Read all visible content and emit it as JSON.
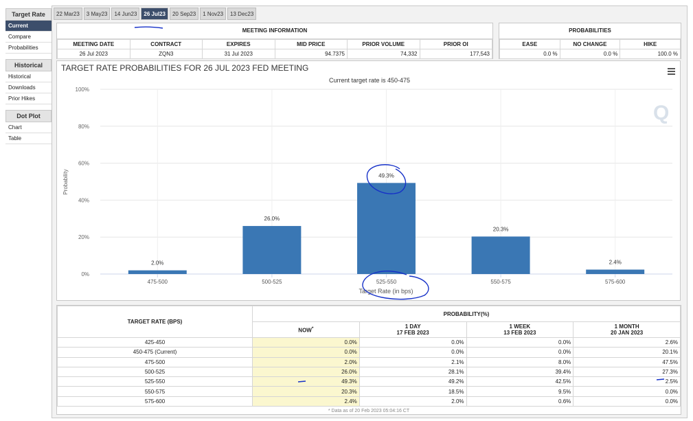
{
  "sidebar": [
    {
      "heading": "Target Rate",
      "items": [
        "Current",
        "Compare",
        "Probabilities"
      ]
    },
    {
      "heading": "Historical",
      "items": [
        "Historical",
        "Downloads",
        "Prior Hikes"
      ]
    },
    {
      "heading": "Dot Plot",
      "items": [
        "Chart",
        "Table"
      ]
    }
  ],
  "tabs": [
    "22 Mar23",
    "3 May23",
    "14 Jun23",
    "26 Jul23",
    "20 Sep23",
    "1 Nov23",
    "13 Dec23"
  ],
  "meeting_info": {
    "title": "MEETING INFORMATION",
    "columns": [
      "MEETING DATE",
      "CONTRACT",
      "EXPIRES",
      "MID PRICE",
      "PRIOR VOLUME",
      "PRIOR OI"
    ],
    "values": [
      "26 Jul 2023",
      "ZQN3",
      "31 Jul 2023",
      "94.7375",
      "74,332",
      "177,543"
    ]
  },
  "probabilities": {
    "title": "PROBABILITIES",
    "columns": [
      "EASE",
      "NO CHANGE",
      "HIKE"
    ],
    "values": [
      "0.0 %",
      "0.0 %",
      "100.0 %"
    ]
  },
  "chart_data": {
    "type": "bar",
    "title": "TARGET RATE PROBABILITIES FOR 26 JUL 2023 FED MEETING",
    "subtitle": "Current target rate is 450-475",
    "x_label": "Target Rate (in bps)",
    "y_label": "Probability",
    "categories": [
      "475-500",
      "500-525",
      "525-550",
      "550-575",
      "575-600"
    ],
    "values": [
      2.0,
      26.0,
      49.3,
      20.3,
      2.4
    ],
    "value_labels": [
      "2.0%",
      "26.0%",
      "49.3%",
      "20.3%",
      "2.4%"
    ],
    "color": "#3a77b4",
    "ylim": [
      0,
      100
    ],
    "yticks": [
      {
        "value": 0,
        "label": "0%"
      },
      {
        "value": 20,
        "label": "20%"
      },
      {
        "value": 40,
        "label": "40%"
      },
      {
        "value": 60,
        "label": "60%"
      },
      {
        "value": 80,
        "label": "80%"
      },
      {
        "value": 100,
        "label": "100%"
      }
    ],
    "grid": true
  },
  "table": {
    "rate_header": "TARGET RATE (BPS)",
    "group_header": "PROBABILITY(%)",
    "columns": [
      {
        "name": "NOW",
        "note": "*"
      },
      {
        "name": "1 DAY",
        "date": "17 FEB 2023"
      },
      {
        "name": "1 WEEK",
        "date": "13 FEB 2023"
      },
      {
        "name": "1 MONTH",
        "date": "20 JAN 2023"
      }
    ],
    "rows": [
      [
        "425-450",
        "0.0%",
        "0.0%",
        "0.0%",
        "2.6%"
      ],
      [
        "450-475 (Current)",
        "0.0%",
        "0.0%",
        "0.0%",
        "20.1%"
      ],
      [
        "475-500",
        "2.0%",
        "2.1%",
        "8.0%",
        "47.5%"
      ],
      [
        "500-525",
        "26.0%",
        "28.1%",
        "39.4%",
        "27.3%"
      ],
      [
        "525-550",
        "49.3%",
        "49.2%",
        "42.5%",
        "2.5%"
      ],
      [
        "550-575",
        "20.3%",
        "18.5%",
        "9.5%",
        "0.0%"
      ],
      [
        "575-600",
        "2.4%",
        "2.0%",
        "0.6%",
        "0.0%"
      ]
    ],
    "footnote": "* Data as of 20 Feb 2023 05:04:16 CT"
  }
}
